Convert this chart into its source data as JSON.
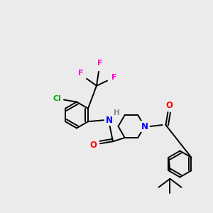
{
  "bg_color": "#ebebeb",
  "bond_color": "#000000",
  "atom_colors": {
    "N": "#0000ff",
    "O": "#ff0000",
    "F": "#ff00cc",
    "Cl": "#00aa00",
    "H": "#888888",
    "C": "#000000"
  }
}
